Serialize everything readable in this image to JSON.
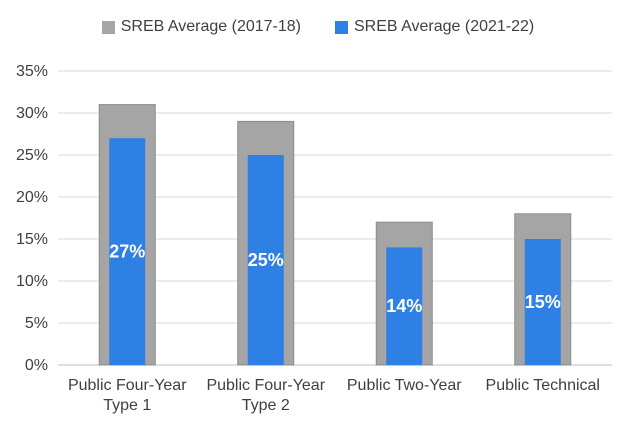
{
  "chart_data": {
    "type": "bar",
    "categories": [
      [
        "Public Four-Year",
        "Type 1"
      ],
      [
        "Public Four-Year",
        "Type 2"
      ],
      [
        "Public Two-Year"
      ],
      [
        "Public Technical"
      ]
    ],
    "series": [
      {
        "name": "SREB Average (2017-18)",
        "values": [
          31,
          29,
          17,
          18
        ],
        "color": "#a5a5a5",
        "border": "#8c8c8c"
      },
      {
        "name": "SREB Average (2021-22)",
        "values": [
          27,
          25,
          14,
          15
        ],
        "color": "#2f80e4",
        "data_labels": [
          "27%",
          "25%",
          "14%",
          "15%"
        ]
      }
    ],
    "y_ticks": [
      "0%",
      "5%",
      "10%",
      "15%",
      "20%",
      "25%",
      "30%",
      "35%"
    ],
    "ylim": [
      0,
      35
    ],
    "grid": true,
    "legend_position": "top"
  }
}
